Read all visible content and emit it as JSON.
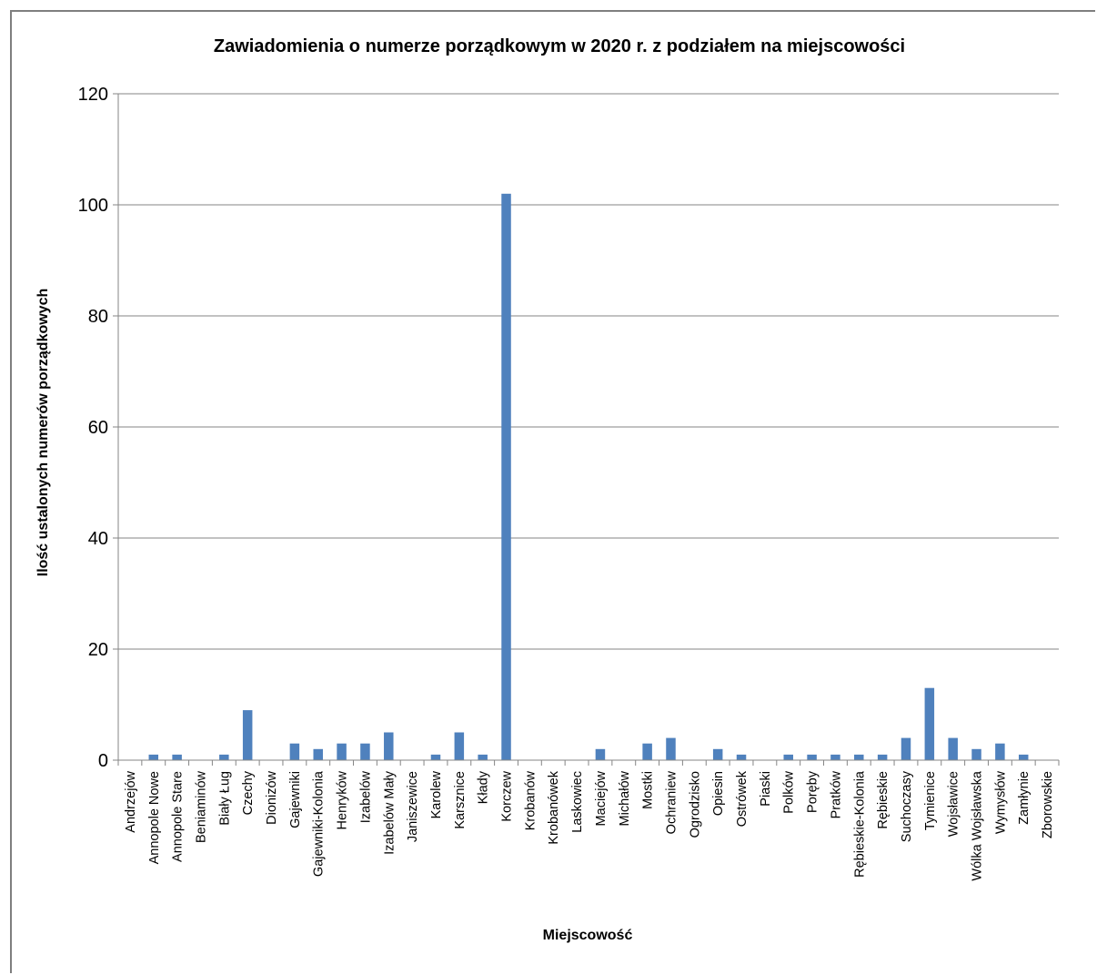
{
  "chart_data": {
    "type": "bar",
    "title": "Zawiadomienia o numerze porządkowym  w 2020 r. z podziałem na miejscowości",
    "xlabel": "Miejscowość",
    "ylabel": "Ilość ustalonych numerów porządkowych",
    "ylim": [
      0,
      120
    ],
    "yticks": [
      0,
      20,
      40,
      60,
      80,
      100,
      120
    ],
    "grid": "horizontal",
    "legend": "none",
    "bar_color": "#4f81bd",
    "categories": [
      "Andrzejów",
      "Annopole Nowe",
      "Annopole Stare",
      "Beniaminów",
      "Biały Ług",
      "Czechy",
      "Dionizów",
      "Gajewniki",
      "Gajewniki-Kolonia",
      "Henryków",
      "Izabelów",
      "Izabelów Mały",
      "Janiszewice",
      "Karolew",
      "Karsznice",
      "Kłady",
      "Korczew",
      "Krobanów",
      "Krobanówek",
      "Laskowiec",
      "Maciejów",
      "Michałów",
      "Mostki",
      "Ochraniew",
      "Ogrodzisko",
      "Opiesin",
      "Ostrówek",
      "Piaski",
      "Polków",
      "Poręby",
      "Pratków",
      "Rębieskie-Kolonia",
      "Rębieskie",
      "Suchoczasy",
      "Tymienice",
      "Wojsławice",
      "Wólka Wojsławska",
      "Wymysłów",
      "Zamłynie",
      "Zborowskie"
    ],
    "values": [
      0,
      1,
      1,
      0,
      1,
      9,
      0,
      3,
      2,
      3,
      3,
      5,
      0,
      1,
      5,
      1,
      102,
      0,
      0,
      0,
      2,
      0,
      3,
      4,
      0,
      2,
      1,
      0,
      1,
      1,
      1,
      1,
      1,
      4,
      13,
      4,
      2,
      3,
      1,
      0
    ]
  }
}
